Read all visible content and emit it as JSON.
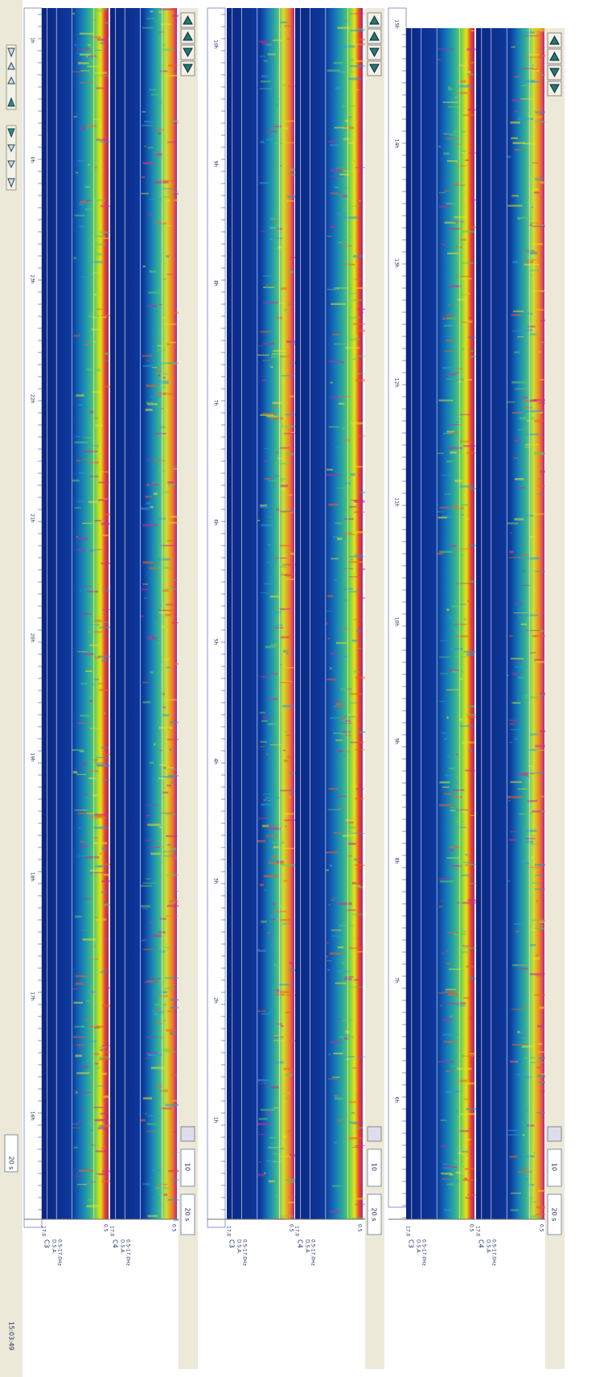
{
  "toolbar": {
    "time": "15:03:49",
    "window": "20 s"
  },
  "panels": [
    {
      "time_labels": [
        "1h",
        "0h",
        "23h",
        "22h",
        "21h",
        "20h",
        "19h",
        "18h",
        "17h",
        "16h"
      ],
      "channels": [
        {
          "name": "C3",
          "kind": "D.S.A.",
          "band": "0.5-17.0Hz",
          "max": "17.0",
          "min": "0.5"
        },
        {
          "name": "C4",
          "kind": "D.S.A.",
          "band": "0.5-17.0Hz",
          "max": "17.0",
          "min": "0.5"
        }
      ],
      "window": "20 s",
      "zoom": "10"
    },
    {
      "time_labels": [
        "10h",
        "9h",
        "8h",
        "7h",
        "6h",
        "5h",
        "4h",
        "3h",
        "2h",
        "1h"
      ],
      "channels": [
        {
          "name": "C3",
          "kind": "D.S.A.",
          "band": "0.5-17.0Hz",
          "max": "17.0",
          "min": "0.5"
        },
        {
          "name": "C4",
          "kind": "D.S.A.",
          "band": "0.5-17.0Hz",
          "max": "17.0",
          "min": "0.5"
        }
      ],
      "window": "20 s",
      "zoom": "10"
    },
    {
      "time_labels": [
        "15h",
        "14h",
        "13h",
        "12h",
        "11h",
        "10h",
        "9h",
        "8h",
        "7h",
        "6h"
      ],
      "channels": [
        {
          "name": "C3",
          "kind": "D.S.A.",
          "band": "0.5-17.0Hz",
          "max": "17.0",
          "min": "0.5"
        },
        {
          "name": "C4",
          "kind": "D.S.A.",
          "band": "0.5-17.0Hz",
          "max": "17.0",
          "min": "0.5"
        }
      ],
      "window": "20 s",
      "zoom": "10"
    }
  ]
}
